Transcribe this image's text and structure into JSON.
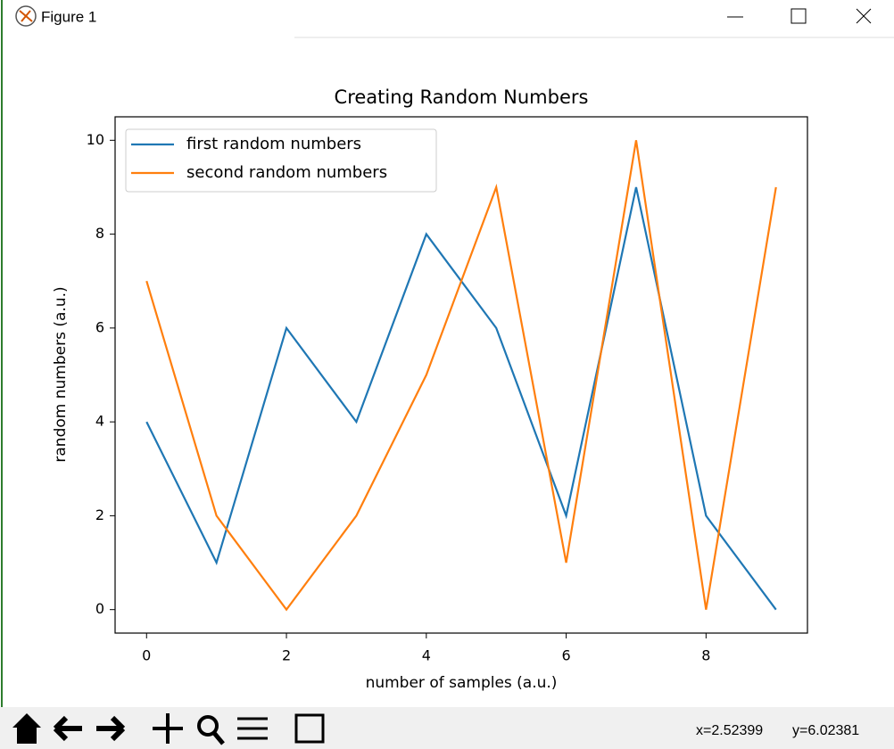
{
  "window": {
    "title": "Figure 1",
    "status_x": "x=2.52399",
    "status_y": "y=6.02381"
  },
  "chart_data": {
    "type": "line",
    "title": "Creating Random Numbers",
    "x_label": "number of samples (a.u.)",
    "y_label": "random numbers (a.u.)",
    "x": [
      0,
      1,
      2,
      3,
      4,
      5,
      6,
      7,
      8,
      9
    ],
    "series": [
      {
        "name": "first random numbers",
        "color": "#1f77b4",
        "values": [
          4,
          1,
          6,
          4,
          8,
          6,
          2,
          9,
          2,
          0
        ]
      },
      {
        "name": "second random numbers",
        "color": "#ff7f0e",
        "values": [
          7,
          2,
          0,
          2,
          5,
          9,
          1,
          10,
          0,
          9
        ]
      }
    ],
    "xlim": [
      -0.45,
      9.45
    ],
    "ylim": [
      -0.5,
      10.5
    ],
    "xticks": [
      0,
      2,
      4,
      6,
      8
    ],
    "yticks": [
      0,
      2,
      4,
      6,
      8,
      10
    ],
    "grid": false,
    "legend": "upper left"
  }
}
